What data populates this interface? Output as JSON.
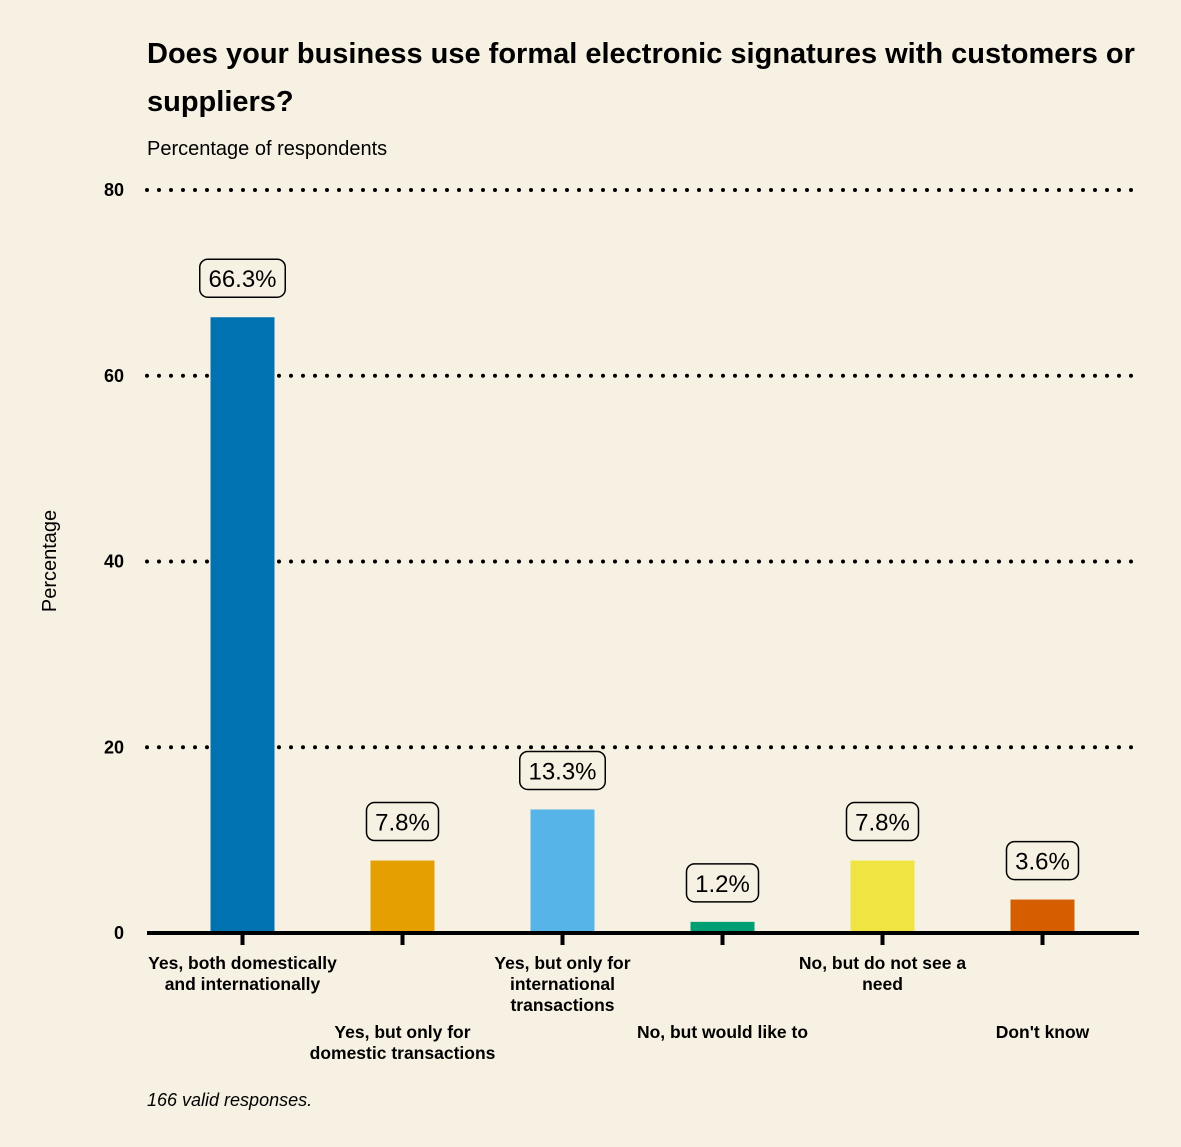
{
  "chart_data": {
    "type": "bar",
    "title": "Does your business use formal electronic signatures with customers or suppliers?",
    "subtitle": "Percentage of respondents",
    "ylabel": "Percentage",
    "xlabel": "",
    "ylim": [
      0,
      80
    ],
    "yticks": [
      0,
      20,
      40,
      60,
      80
    ],
    "grid": true,
    "categories": [
      "Yes, both domestically and internationally",
      "Yes, but only for domestic transactions",
      "Yes, but only for international transactions",
      "No, but would like to",
      "No, but do not see a need",
      "Don't know"
    ],
    "category_label_lines": [
      [
        "Yes, both domestically",
        "and internationally"
      ],
      [
        "Yes, but only for",
        "domestic transactions"
      ],
      [
        "Yes, but only for",
        "international",
        "transactions"
      ],
      [
        "No, but would like to"
      ],
      [
        "No, but do not see a",
        "need"
      ],
      [
        "Don't know"
      ]
    ],
    "values": [
      66.3,
      7.8,
      13.3,
      1.2,
      7.8,
      3.6
    ],
    "data_labels": [
      "66.3%",
      "7.8%",
      "13.3%",
      "1.2%",
      "7.8%",
      "3.6%"
    ],
    "colors": [
      "#0072b2",
      "#e69f00",
      "#56b4e9",
      "#009e73",
      "#f0e442",
      "#d55e00"
    ],
    "note": "166 valid responses."
  }
}
